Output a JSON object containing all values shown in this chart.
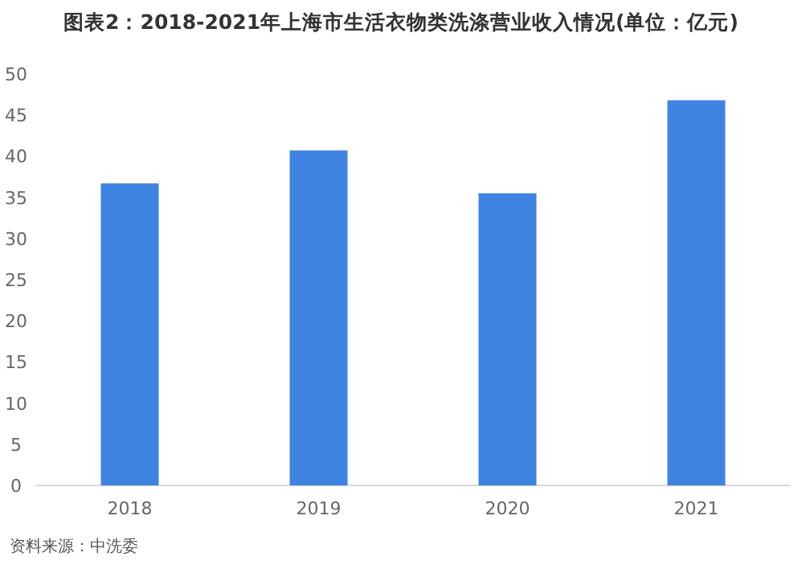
{
  "chart_data": {
    "type": "bar",
    "title": "图表2：2018-2021年上海市生活衣物类洗涤营业收入情况(单位：亿元)",
    "categories": [
      "2018",
      "2019",
      "2020",
      "2021"
    ],
    "values": [
      36.7,
      40.7,
      35.5,
      46.8
    ],
    "color": "#3f83e0",
    "ylim": [
      0,
      50
    ],
    "yticks": [
      0,
      5,
      10,
      15,
      20,
      25,
      30,
      35,
      40,
      45,
      50
    ],
    "grid": false,
    "annotations": [
      "资料来源：中洗委"
    ]
  }
}
